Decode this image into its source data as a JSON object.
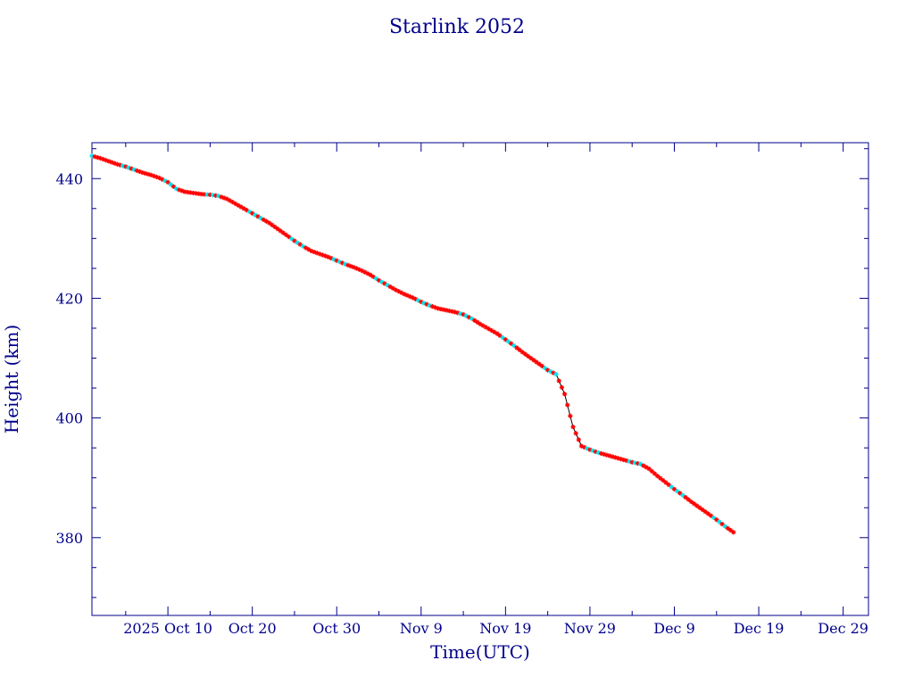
{
  "chart_data": {
    "type": "line",
    "title": "Starlink 2052",
    "xlabel": "Time(UTC)",
    "ylabel": "Height (km)",
    "x_axis_type": "date",
    "xlim": [
      "2025-10-01",
      "2026-01-01"
    ],
    "ylim": [
      367,
      446
    ],
    "x_ticks": [
      {
        "date": "2025-10-10",
        "label": "2025 Oct 10"
      },
      {
        "date": "2025-10-20",
        "label": "Oct 20"
      },
      {
        "date": "2025-10-30",
        "label": "Oct 30"
      },
      {
        "date": "2025-11-09",
        "label": "Nov  9"
      },
      {
        "date": "2025-11-19",
        "label": "Nov 19"
      },
      {
        "date": "2025-11-29",
        "label": "Nov 29"
      },
      {
        "date": "2025-12-09",
        "label": "Dec  9"
      },
      {
        "date": "2025-12-19",
        "label": "Dec 19"
      },
      {
        "date": "2025-12-29",
        "label": "Dec 29"
      }
    ],
    "y_ticks": [
      380,
      400,
      420,
      440
    ],
    "grid": false,
    "colors": {
      "axis": "#00008b",
      "text": "#00008b",
      "line": "#000000",
      "marker_primary": "#ff0000",
      "marker_secondary": "#00e5ee"
    },
    "series": [
      {
        "x": [
          "2025-10-01",
          "2025-10-02",
          "2025-10-03",
          "2025-10-04",
          "2025-10-05",
          "2025-10-06",
          "2025-10-07",
          "2025-10-08",
          "2025-10-09",
          "2025-10-10",
          "2025-10-11",
          "2025-10-12",
          "2025-10-13",
          "2025-10-14",
          "2025-10-15",
          "2025-10-16",
          "2025-10-17",
          "2025-10-18",
          "2025-10-19",
          "2025-10-20",
          "2025-10-21",
          "2025-10-22",
          "2025-10-23",
          "2025-10-24",
          "2025-10-25",
          "2025-10-26",
          "2025-10-27",
          "2025-10-28",
          "2025-10-29",
          "2025-10-30",
          "2025-10-31",
          "2025-11-01",
          "2025-11-02",
          "2025-11-03",
          "2025-11-04",
          "2025-11-05",
          "2025-11-06",
          "2025-11-07",
          "2025-11-08",
          "2025-11-09",
          "2025-11-10",
          "2025-11-11",
          "2025-11-12",
          "2025-11-13",
          "2025-11-14",
          "2025-11-15",
          "2025-11-16",
          "2025-11-17",
          "2025-11-18",
          "2025-11-19",
          "2025-11-20",
          "2025-11-21",
          "2025-11-22",
          "2025-11-23",
          "2025-11-24",
          "2025-11-25",
          "2025-11-26",
          "2025-11-27",
          "2025-11-28",
          "2025-11-29",
          "2025-11-30",
          "2025-12-01",
          "2025-12-02",
          "2025-12-03",
          "2025-12-04",
          "2025-12-05",
          "2025-12-06",
          "2025-12-07",
          "2025-12-08",
          "2025-12-09",
          "2025-12-10",
          "2025-12-11",
          "2025-12-12",
          "2025-12-13",
          "2025-12-14",
          "2025-12-15",
          "2025-12-16"
        ],
        "y": [
          443.8,
          443.4,
          442.9,
          442.4,
          442.0,
          441.5,
          441.0,
          440.6,
          440.1,
          439.4,
          438.3,
          437.8,
          437.6,
          437.4,
          437.3,
          437.1,
          436.6,
          435.8,
          435.0,
          434.2,
          433.4,
          432.6,
          431.6,
          430.6,
          429.6,
          428.7,
          427.9,
          427.4,
          426.9,
          426.3,
          425.7,
          425.2,
          424.6,
          423.9,
          423.0,
          422.2,
          421.4,
          420.7,
          420.1,
          419.4,
          418.8,
          418.3,
          418.0,
          417.7,
          417.3,
          416.6,
          415.7,
          414.9,
          414.1,
          413.1,
          412.1,
          411.0,
          410.0,
          409.0,
          408.0,
          407.3,
          404.0,
          398.5,
          395.3,
          394.7,
          394.2,
          393.8,
          393.4,
          393.0,
          392.6,
          392.3,
          391.5,
          390.3,
          389.2,
          388.1,
          387.1,
          386.0,
          385.0,
          384.0,
          383.0,
          381.9,
          380.9
        ]
      }
    ]
  }
}
